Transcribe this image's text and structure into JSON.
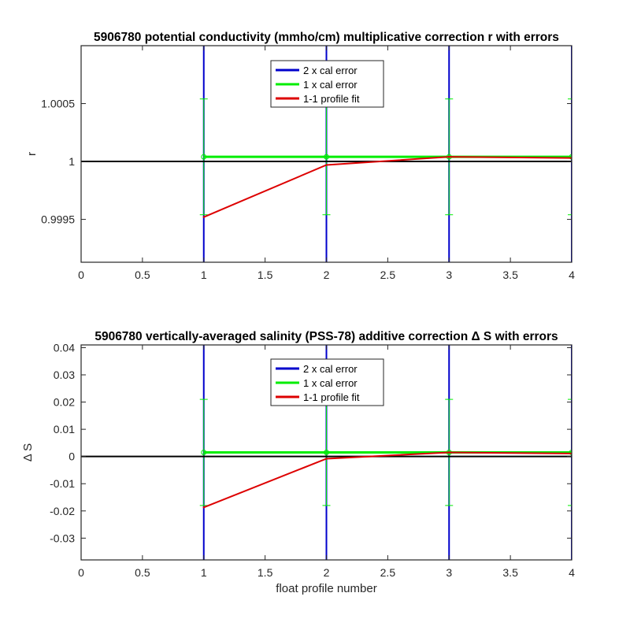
{
  "chart_data": [
    {
      "type": "line",
      "title": "5906780 potential conductivity (mmho/cm) multiplicative correction r with errors",
      "xlabel": "",
      "ylabel": "r",
      "xlim": [
        0,
        4
      ],
      "ylim": [
        0.99913,
        1.001
      ],
      "xticks": [
        0,
        0.5,
        1,
        1.5,
        2,
        2.5,
        3,
        3.5,
        4
      ],
      "xtick_labels": [
        "0",
        "0.5",
        "1",
        "1.5",
        "2",
        "2.5",
        "3",
        "3.5",
        "4"
      ],
      "yticks": [
        0.9995,
        1,
        1.0005
      ],
      "ytick_labels": [
        "0.9995",
        "1",
        "1.0005"
      ],
      "reference_line": 1,
      "legend_position": "top-center",
      "colors": {
        "two_cal": "#0000cc",
        "one_cal": "#00ee00",
        "fit": "#dd0000",
        "reference": "#000000"
      },
      "series": [
        {
          "name": "2 x cal error",
          "x": [
            1,
            2,
            3,
            4
          ],
          "center": [
            1.00004,
            1.00004,
            1.00004,
            1.00004
          ],
          "lower": [
            0.99913,
            0.99913,
            0.99913,
            0.99913
          ],
          "upper": [
            1.001,
            1.001,
            1.001,
            1.001
          ]
        },
        {
          "name": "1 x cal error",
          "x": [
            1,
            2,
            3,
            4
          ],
          "center": [
            1.00004,
            1.00004,
            1.00004,
            1.00004
          ],
          "lower": [
            0.99954,
            0.99954,
            0.99954,
            0.99954
          ],
          "upper": [
            1.00054,
            1.00054,
            1.00054,
            1.00054
          ]
        },
        {
          "name": "1-1 profile fit",
          "x": [
            1,
            2,
            3,
            4
          ],
          "y": [
            0.99952,
            0.99997,
            1.00004,
            1.00003
          ]
        }
      ]
    },
    {
      "type": "line",
      "title": "5906780 vertically-averaged salinity (PSS-78) additive correction Δ S with errors",
      "xlabel": "float profile number",
      "ylabel": "Δ S",
      "xlim": [
        0,
        4
      ],
      "ylim": [
        -0.038,
        0.041
      ],
      "xticks": [
        0,
        0.5,
        1,
        1.5,
        2,
        2.5,
        3,
        3.5,
        4
      ],
      "xtick_labels": [
        "0",
        "0.5",
        "1",
        "1.5",
        "2",
        "2.5",
        "3",
        "3.5",
        "4"
      ],
      "yticks": [
        -0.03,
        -0.02,
        -0.01,
        0,
        0.01,
        0.02,
        0.03,
        0.04
      ],
      "ytick_labels": [
        "-0.03",
        "-0.02",
        "-0.01",
        "0",
        "0.01",
        "0.02",
        "0.03",
        "0.04"
      ],
      "reference_line": 0,
      "legend_position": "top-center",
      "colors": {
        "two_cal": "#0000cc",
        "one_cal": "#00ee00",
        "fit": "#dd0000",
        "reference": "#000000"
      },
      "series": [
        {
          "name": "2 x cal error",
          "x": [
            1,
            2,
            3,
            4
          ],
          "center": [
            0.0015,
            0.0015,
            0.0015,
            0.0015
          ],
          "lower": [
            -0.038,
            -0.038,
            -0.038,
            -0.038
          ],
          "upper": [
            0.041,
            0.041,
            0.041,
            0.041
          ]
        },
        {
          "name": "1 x cal error",
          "x": [
            1,
            2,
            3,
            4
          ],
          "center": [
            0.0015,
            0.0015,
            0.0015,
            0.0015
          ],
          "lower": [
            -0.018,
            -0.018,
            -0.018,
            -0.018
          ],
          "upper": [
            0.021,
            0.021,
            0.021,
            0.021
          ]
        },
        {
          "name": "1-1 profile fit",
          "x": [
            1,
            2,
            3,
            4
          ],
          "y": [
            -0.0187,
            -0.0008,
            0.0015,
            0.0011
          ]
        }
      ]
    }
  ]
}
